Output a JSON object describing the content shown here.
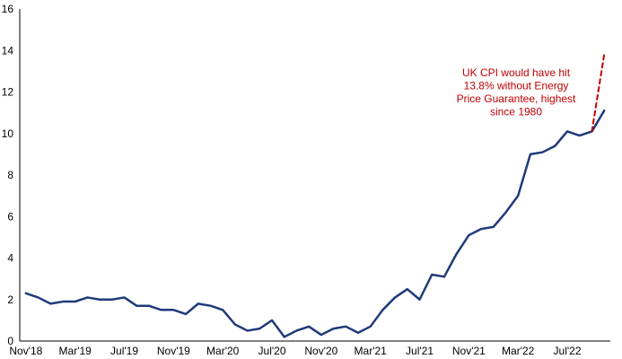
{
  "chart_data": {
    "type": "line",
    "title": "",
    "xlabel": "",
    "ylabel": "",
    "ylim": [
      0,
      16
    ],
    "yticks": [
      0,
      2,
      4,
      6,
      8,
      10,
      12,
      14,
      16
    ],
    "grid": false,
    "legend": "none",
    "x": [
      "Nov'18",
      "Dec'18",
      "Jan'19",
      "Feb'19",
      "Mar'19",
      "Apr'19",
      "May'19",
      "Jun'19",
      "Jul'19",
      "Aug'19",
      "Sep'19",
      "Oct'19",
      "Nov'19",
      "Dec'19",
      "Jan'20",
      "Feb'20",
      "Mar'20",
      "Apr'20",
      "May'20",
      "Jun'20",
      "Jul'20",
      "Aug'20",
      "Sep'20",
      "Oct'20",
      "Nov'20",
      "Dec'20",
      "Jan'21",
      "Feb'21",
      "Mar'21",
      "Apr'21",
      "May'21",
      "Jun'21",
      "Jul'21",
      "Aug'21",
      "Sep'21",
      "Oct'21",
      "Nov'21",
      "Dec'21",
      "Jan'22",
      "Feb'22",
      "Mar'22",
      "Apr'22",
      "May'22",
      "Jun'22",
      "Jul'22",
      "Aug'22",
      "Sep'22",
      "Oct'22"
    ],
    "x_tick_labels": [
      "Nov'18",
      "Mar'19",
      "Jul'19",
      "Nov'19",
      "Mar'20",
      "Jul'20",
      "Nov'20",
      "Mar'21",
      "Jul'21",
      "Nov'21",
      "Mar'22",
      "Jul'22"
    ],
    "series": [
      {
        "color": "#1f3a7a",
        "style": "solid",
        "values": [
          2.3,
          2.1,
          1.8,
          1.9,
          1.9,
          2.1,
          2.0,
          2.0,
          2.1,
          1.7,
          1.7,
          1.5,
          1.5,
          1.3,
          1.8,
          1.7,
          1.5,
          0.8,
          0.5,
          0.6,
          1.0,
          0.2,
          0.5,
          0.7,
          0.3,
          0.6,
          0.7,
          0.4,
          0.7,
          1.5,
          2.1,
          2.5,
          2.0,
          3.2,
          3.1,
          4.2,
          5.1,
          5.4,
          5.5,
          6.2,
          7.0,
          9.0,
          9.1,
          9.4,
          10.1,
          9.9,
          10.1,
          11.1
        ]
      },
      {
        "color": "#c00000",
        "style": "dashed",
        "x": [
          "Sep'22",
          "Oct'22"
        ],
        "values": [
          10.1,
          13.8
        ]
      }
    ],
    "annotations": [
      {
        "color": "#c00000",
        "lines": [
          "UK CPI would have hit",
          "13.8% without Energy",
          "Price Guarantee, highest",
          "since 1980"
        ]
      }
    ]
  }
}
